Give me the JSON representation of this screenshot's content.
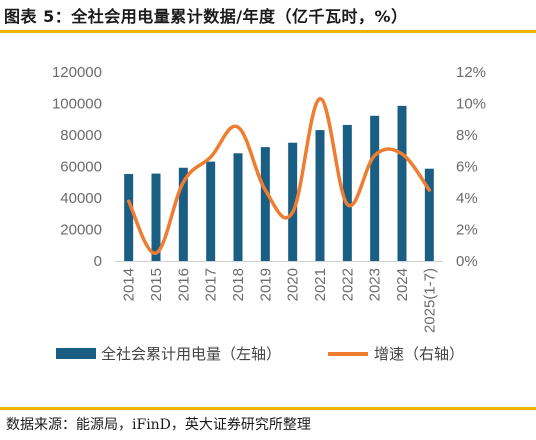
{
  "title": "图表 5：全社会用电量累计数据/年度（亿千瓦时，%）",
  "source": "数据来源：能源局，iFinD，英大证券研究所整理",
  "colors": {
    "bar": "#1a5e84",
    "line": "#ee7d31",
    "rule": "#f0b400"
  },
  "chart_data": {
    "type": "bar",
    "categories": [
      "2014",
      "2015",
      "2016",
      "2017",
      "2018",
      "2019",
      "2020",
      "2021",
      "2022",
      "2023",
      "2024",
      "2025(1-7)"
    ],
    "series": [
      {
        "name": "全社会累计用电量（左轴）",
        "type": "bar",
        "axis": "left",
        "values": [
          55200,
          55500,
          59200,
          63100,
          68400,
          72300,
          75100,
          83100,
          86400,
          92200,
          98500,
          58600
        ]
      },
      {
        "name": "增速（右轴）",
        "type": "line",
        "axis": "right",
        "values": [
          3.8,
          0.5,
          5.0,
          6.6,
          8.5,
          4.5,
          3.1,
          10.3,
          3.6,
          6.7,
          6.8,
          4.5
        ]
      }
    ],
    "left_axis": {
      "ylim": [
        0,
        120000
      ],
      "ticks": [
        "0",
        "20000",
        "40000",
        "60000",
        "80000",
        "100000",
        "120000"
      ]
    },
    "right_axis": {
      "ylim": [
        0,
        12
      ],
      "ticks": [
        "0%",
        "2%",
        "4%",
        "6%",
        "8%",
        "10%",
        "12%"
      ]
    },
    "grid": false,
    "legend_position": "bottom"
  }
}
